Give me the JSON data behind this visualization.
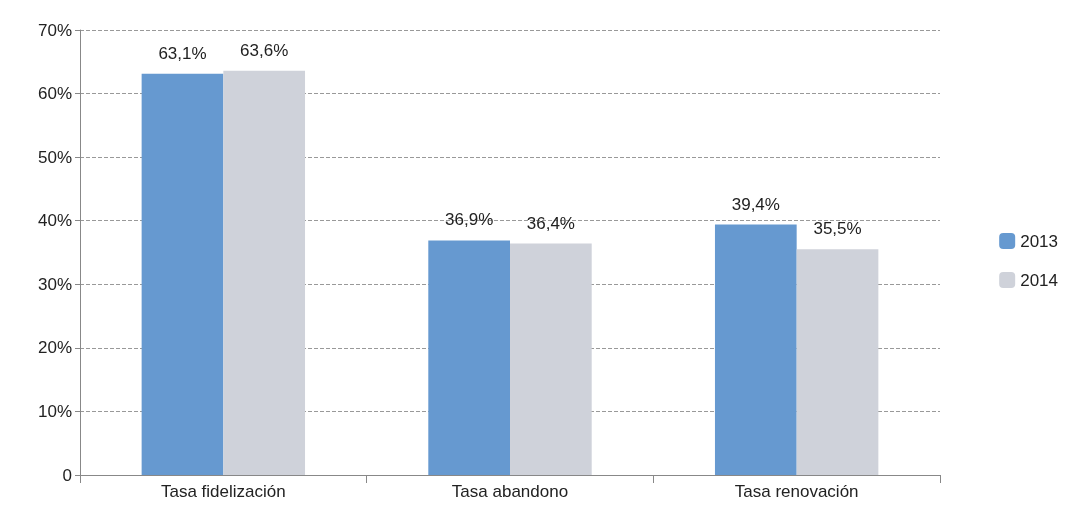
{
  "chart_data": {
    "type": "bar",
    "categories": [
      "Tasa fidelización",
      "Tasa abandono",
      "Tasa renovación"
    ],
    "series": [
      {
        "name": "2013",
        "color": "#6699d0",
        "values": [
          63.1,
          36.9,
          39.4
        ],
        "value_labels": [
          "63,1%",
          "36,9%",
          "39,4%"
        ]
      },
      {
        "name": "2014",
        "color": "#cfd2da",
        "values": [
          63.6,
          36.4,
          35.5
        ],
        "value_labels": [
          "63,6%",
          "36,4%",
          "35,5%"
        ]
      }
    ],
    "ylim": [
      0,
      70
    ],
    "yticks": [
      0,
      {
        "value": 10,
        "label": "10%"
      },
      {
        "value": 20,
        "label": "20%"
      },
      {
        "value": 30,
        "label": "30%"
      },
      {
        "value": 40,
        "label": "40%"
      },
      {
        "value": 50,
        "label": "50%"
      },
      {
        "value": 60,
        "label": "60%"
      },
      {
        "value": 70,
        "label": "70%"
      }
    ],
    "grid": "y",
    "legend": "right",
    "line_style": "dashed"
  }
}
